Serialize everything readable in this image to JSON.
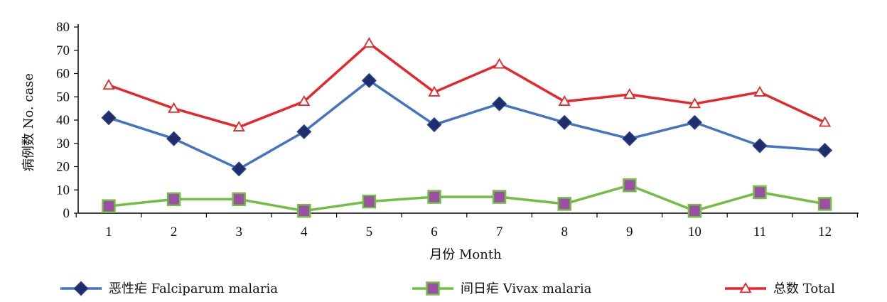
{
  "chart_data": {
    "type": "line",
    "xlabel": "月份  Month",
    "ylabel": "病例数  No. case",
    "ylim": [
      0,
      80
    ],
    "yticks": [
      0,
      10,
      20,
      30,
      40,
      50,
      60,
      70,
      80
    ],
    "categories": [
      "1",
      "2",
      "3",
      "4",
      "5",
      "6",
      "7",
      "8",
      "9",
      "10",
      "11",
      "12"
    ],
    "legend_position": "bottom",
    "series": [
      {
        "key": "falciparum",
        "name": "恶性疟  Falciparum  malaria",
        "color": "#4472c4",
        "marker": "diamond",
        "marker_color": "#1f2d6b",
        "values": [
          41,
          32,
          19,
          35,
          57,
          38,
          47,
          39,
          32,
          39,
          29,
          27
        ]
      },
      {
        "key": "vivax",
        "name": "间日疟  Vivax  malaria",
        "color": "#70bf44",
        "marker": "square",
        "marker_color": "#9b4fa5",
        "values": [
          3,
          6,
          6,
          1,
          5,
          7,
          7,
          4,
          12,
          1,
          9,
          4
        ]
      },
      {
        "key": "total",
        "name": "总数  Total",
        "color": "#e8262a",
        "marker": "triangle",
        "marker_color": "#ffffff",
        "values": [
          55,
          45,
          37,
          48,
          73,
          52,
          64,
          48,
          51,
          47,
          52,
          39
        ]
      }
    ]
  }
}
